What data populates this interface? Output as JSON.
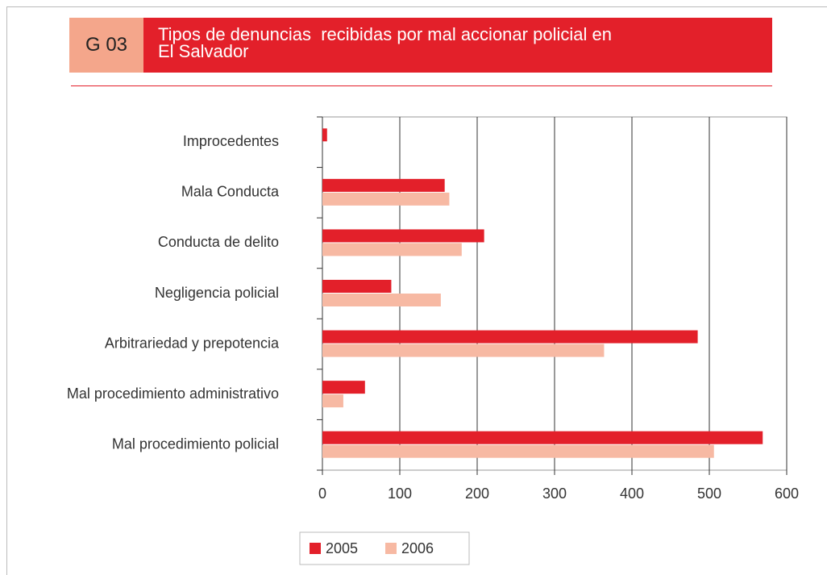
{
  "chart_data": {
    "type": "bar",
    "orientation": "horizontal",
    "code": "G 03",
    "title": [
      "Tipos de denuncias  recibidas por mal accionar policial en",
      "El Salvador"
    ],
    "categories": [
      "Improcedentes",
      "Mala Conducta",
      "Conducta de delito",
      "Negligencia policial",
      "Arbitrariedad y prepotencia",
      "Mal procedimiento administrativo",
      "Mal procedimiento policial"
    ],
    "series": [
      {
        "name": "2005",
        "color": "#e3202a",
        "values": [
          6,
          158,
          209,
          89,
          485,
          55,
          569
        ]
      },
      {
        "name": "2006",
        "color": "#f7b9a3",
        "values": [
          0,
          164,
          180,
          153,
          364,
          27,
          506
        ]
      }
    ],
    "xlim": [
      0,
      600
    ],
    "xticks": [
      0,
      100,
      200,
      300,
      400,
      500,
      600
    ],
    "grid": true,
    "legend": "bottom"
  }
}
